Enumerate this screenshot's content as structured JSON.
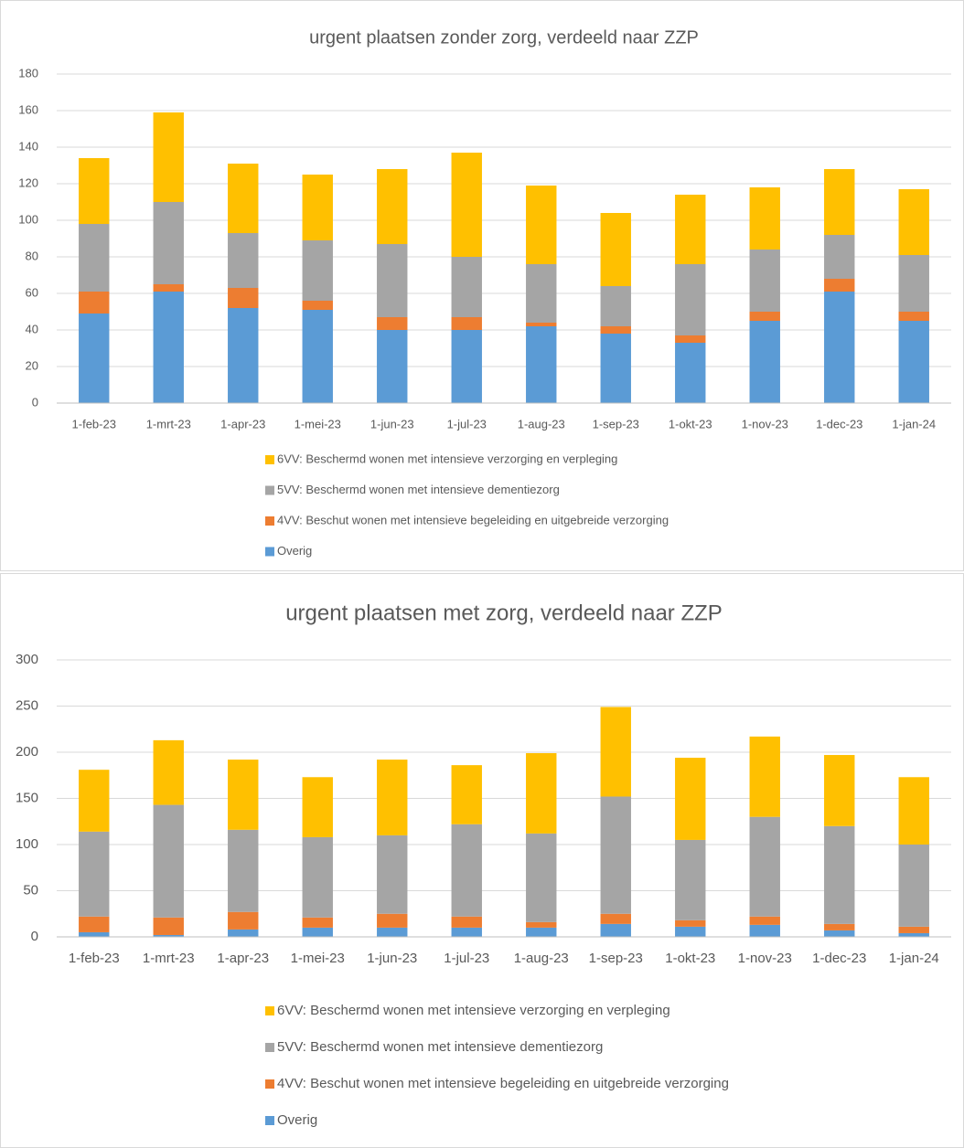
{
  "chart_data": [
    {
      "type": "bar",
      "stacked": true,
      "title": "urgent plaatsen zonder zorg, verdeeld naar ZZP",
      "categories": [
        "1-feb-23",
        "1-mrt-23",
        "1-apr-23",
        "1-mei-23",
        "1-jun-23",
        "1-jul-23",
        "1-aug-23",
        "1-sep-23",
        "1-okt-23",
        "1-nov-23",
        "1-dec-23",
        "1-jan-24"
      ],
      "series": [
        {
          "name": "Overig",
          "color": "#5b9bd5",
          "values": [
            49,
            61,
            52,
            51,
            40,
            40,
            42,
            38,
            33,
            45,
            61,
            45
          ]
        },
        {
          "name": "4VV: Beschut wonen met intensieve begeleiding en uitgebreide verzorging",
          "color": "#ed7d31",
          "values": [
            12,
            4,
            11,
            5,
            7,
            7,
            2,
            4,
            4,
            5,
            7,
            5
          ]
        },
        {
          "name": "5VV: Beschermd wonen met intensieve dementiezorg",
          "color": "#a5a5a5",
          "values": [
            37,
            45,
            30,
            33,
            40,
            33,
            32,
            22,
            39,
            34,
            24,
            31
          ]
        },
        {
          "name": "6VV: Beschermd wonen met intensieve verzorging en verpleging",
          "color": "#ffc000",
          "values": [
            36,
            49,
            38,
            36,
            41,
            57,
            43,
            40,
            38,
            34,
            36,
            36
          ]
        }
      ],
      "ylim": [
        0,
        180
      ],
      "yticks": [
        0,
        20,
        40,
        60,
        80,
        100,
        120,
        140,
        160,
        180
      ],
      "grid": true
    },
    {
      "type": "bar",
      "stacked": true,
      "title": "urgent plaatsen met zorg, verdeeld naar ZZP",
      "categories": [
        "1-feb-23",
        "1-mrt-23",
        "1-apr-23",
        "1-mei-23",
        "1-jun-23",
        "1-jul-23",
        "1-aug-23",
        "1-sep-23",
        "1-okt-23",
        "1-nov-23",
        "1-dec-23",
        "1-jan-24"
      ],
      "series": [
        {
          "name": "Overig",
          "color": "#5b9bd5",
          "values": [
            5,
            2,
            8,
            10,
            10,
            10,
            10,
            14,
            11,
            13,
            7,
            4
          ]
        },
        {
          "name": "4VV: Beschut wonen met intensieve begeleiding en uitgebreide verzorging",
          "color": "#ed7d31",
          "values": [
            17,
            19,
            19,
            11,
            15,
            12,
            6,
            11,
            7,
            9,
            7,
            7
          ]
        },
        {
          "name": "5VV: Beschermd wonen met intensieve dementiezorg",
          "color": "#a5a5a5",
          "values": [
            92,
            122,
            89,
            87,
            85,
            100,
            96,
            127,
            87,
            108,
            106,
            89
          ]
        },
        {
          "name": "6VV: Beschermd wonen met intensieve verzorging en verpleging",
          "color": "#ffc000",
          "values": [
            67,
            70,
            76,
            65,
            82,
            64,
            87,
            97,
            89,
            87,
            77,
            73
          ]
        }
      ],
      "ylim": [
        0,
        300
      ],
      "yticks": [
        0,
        50,
        100,
        150,
        200,
        250,
        300
      ],
      "grid": true
    }
  ]
}
